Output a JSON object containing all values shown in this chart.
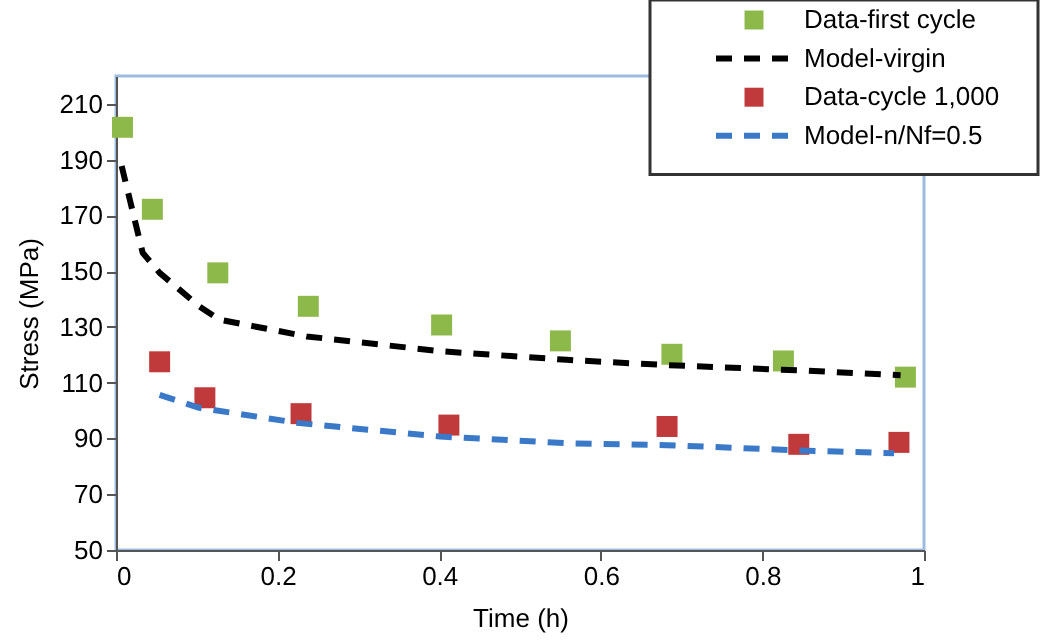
{
  "chart_data": {
    "type": "scatter",
    "xlabel": "Time (h)",
    "ylabel": "Stress (MPa)",
    "xlim": [
      0,
      1
    ],
    "xticks": [
      0,
      0.2,
      0.4,
      0.6,
      0.8,
      1
    ],
    "ylim": [
      50,
      220
    ],
    "yticks": [
      50,
      70,
      90,
      110,
      130,
      150,
      170,
      190,
      210
    ],
    "grid": false,
    "legend": "top right",
    "series": [
      {
        "name": "Data-first cycle",
        "marker": "square",
        "color": "#8db84a",
        "x": [
          0.008,
          0.045,
          0.126,
          0.238,
          0.403,
          0.55,
          0.688,
          0.826,
          0.977
        ],
        "values": [
          201.6,
          172.2,
          149.4,
          137.4,
          130.7,
          125,
          120.2,
          117.8,
          112
        ]
      },
      {
        "name": "Model-virgin",
        "type": "line",
        "line_style": "dashed",
        "color": "#000000",
        "x": [
          0.007,
          0.033,
          0.054,
          0.103,
          0.128,
          0.236,
          0.401,
          0.558,
          0.682,
          0.847,
          0.971
        ],
        "values": [
          187.7,
          156.6,
          149.4,
          137.4,
          132.6,
          126.6,
          121.3,
          118.2,
          116.3,
          114.4,
          112.7
        ]
      },
      {
        "name": "Data-cycle 1,000",
        "marker": "square",
        "color": "#c0393b",
        "x": [
          0.054,
          0.11,
          0.229,
          0.412,
          0.682,
          0.845,
          0.969
        ],
        "values": [
          117.5,
          104.6,
          98.9,
          94.8,
          94.3,
          87.9,
          88.6
        ]
      },
      {
        "name": "Model-n/Nf=0.5",
        "type": "line",
        "line_style": "dashed",
        "color": "#3a78c8",
        "x": [
          0.054,
          0.103,
          0.227,
          0.401,
          0.558,
          0.682,
          0.847,
          0.963
        ],
        "values": [
          105.6,
          101,
          95.5,
          90.7,
          88.3,
          87.6,
          85.7,
          84.7
        ]
      }
    ]
  }
}
